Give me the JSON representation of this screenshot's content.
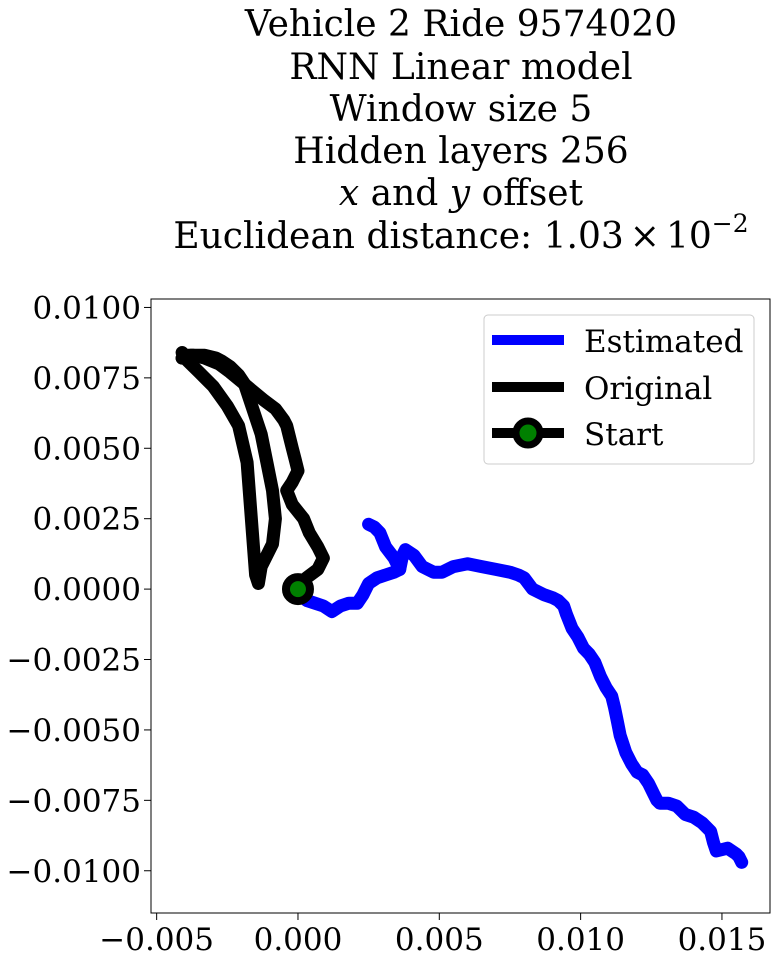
{
  "chart_data": {
    "type": "line",
    "title_lines": [
      "Vehicle 2 Ride 9574020",
      "RNN Linear model",
      "Window size 5",
      "Hidden layers 256"
    ],
    "offset_line": {
      "x_var": "x",
      "middle": " and ",
      "y_var": "y",
      "end": " offset"
    },
    "distance_line": {
      "prefix": "Euclidean distance: ",
      "mantissa": "1.03",
      "times": "×",
      "base": "10",
      "exponent": "−2"
    },
    "xlim": [
      -0.0052,
      0.0167
    ],
    "ylim": [
      -0.0115,
      0.0103
    ],
    "x_ticks": [
      {
        "value": -0.005,
        "label": "−0.005"
      },
      {
        "value": 0.0,
        "label": "0.000"
      },
      {
        "value": 0.005,
        "label": "0.005"
      },
      {
        "value": 0.01,
        "label": "0.010"
      },
      {
        "value": 0.015,
        "label": "0.015"
      }
    ],
    "y_ticks": [
      {
        "value": 0.01,
        "label": "0.0100"
      },
      {
        "value": 0.0075,
        "label": "0.0075"
      },
      {
        "value": 0.005,
        "label": "0.0050"
      },
      {
        "value": 0.0025,
        "label": "0.0025"
      },
      {
        "value": 0.0,
        "label": "0.0000"
      },
      {
        "value": -0.0025,
        "label": "−0.0025"
      },
      {
        "value": -0.005,
        "label": "−0.0050"
      },
      {
        "value": -0.0075,
        "label": "−0.0075"
      },
      {
        "value": -0.01,
        "label": "−0.0100"
      }
    ],
    "grid": false,
    "legend_position": "top-right",
    "legend": [
      {
        "label": "Estimated",
        "color": "#0000ff",
        "marker": false
      },
      {
        "label": "Original",
        "color": "#000000",
        "marker": false
      },
      {
        "label": "Start",
        "color": "#000000",
        "marker": true,
        "marker_face": "#008000"
      }
    ],
    "series": [
      {
        "name": "Estimated",
        "color": "#0000ff",
        "x": [
          0.0,
          0.0003,
          0.0006,
          0.0009,
          0.0012,
          0.0015,
          0.0018,
          0.0021,
          0.0023,
          0.0025,
          0.0028,
          0.0031,
          0.0034,
          0.0036,
          0.0037,
          0.0038,
          0.0041,
          0.0044,
          0.0046,
          0.0048,
          0.0051,
          0.0055,
          0.006,
          0.0065,
          0.007,
          0.0075,
          0.0078,
          0.008,
          0.0083,
          0.0087,
          0.009,
          0.0092,
          0.0094,
          0.0095,
          0.0097,
          0.0099,
          0.0101,
          0.0103,
          0.0105,
          0.0107,
          0.0109,
          0.0111,
          0.0112,
          0.0113,
          0.0114,
          0.0116,
          0.0118,
          0.012,
          0.0122,
          0.0124,
          0.0126,
          0.0127,
          0.0128,
          0.0131,
          0.0134,
          0.0137,
          0.014,
          0.0143,
          0.0146,
          0.0147,
          0.0148,
          0.0152,
          0.0155,
          0.0156,
          0.0157
        ],
        "y": [
          0.0,
          -0.0004,
          -0.0005,
          -0.0006,
          -0.0008,
          -0.0006,
          -0.0005,
          -0.0005,
          -0.0002,
          0.0002,
          0.0004,
          0.0005,
          0.0006,
          0.0007,
          0.0012,
          0.0014,
          0.0012,
          0.0008,
          0.0007,
          0.0006,
          0.0006,
          0.0008,
          0.0009,
          0.0008,
          0.0007,
          0.0006,
          0.0005,
          0.0004,
          0.0,
          -0.0002,
          -0.0003,
          -0.0004,
          -0.0006,
          -0.0009,
          -0.0014,
          -0.0017,
          -0.0021,
          -0.0023,
          -0.0026,
          -0.0031,
          -0.0035,
          -0.0038,
          -0.0042,
          -0.0047,
          -0.0052,
          -0.0058,
          -0.0062,
          -0.0065,
          -0.0066,
          -0.0069,
          -0.0073,
          -0.0075,
          -0.0076,
          -0.0076,
          -0.0077,
          -0.008,
          -0.0081,
          -0.0083,
          -0.0086,
          -0.009,
          -0.0093,
          -0.0092,
          -0.0094,
          -0.0095,
          -0.0097
        ]
      },
      {
        "name": "",
        "color": "#0000ff",
        "x": [
          0.0036,
          0.0034,
          0.0031,
          0.0029,
          0.0027,
          0.0025
        ],
        "y": [
          0.0007,
          0.0011,
          0.0015,
          0.002,
          0.0022,
          0.0023
        ]
      },
      {
        "name": "Original",
        "color": "#000000",
        "x": [
          0.0,
          0.0003,
          0.0007,
          0.0009,
          0.0007,
          0.0004,
          0.0002,
          -0.0002,
          -0.0004,
          -0.0002,
          0.0,
          -0.0001,
          -0.0002,
          -0.0003,
          -0.0004,
          -0.0005,
          -0.0008,
          -0.0012,
          -0.0018,
          -0.0024,
          -0.0028,
          -0.0033,
          -0.0037,
          -0.004,
          -0.0041
        ],
        "y": [
          0.0,
          0.0004,
          0.0007,
          0.0011,
          0.0015,
          0.002,
          0.0025,
          0.003,
          0.0035,
          0.0038,
          0.0042,
          0.0046,
          0.005,
          0.0054,
          0.0058,
          0.006,
          0.0064,
          0.0067,
          0.0072,
          0.0077,
          0.008,
          0.0082,
          0.0083,
          0.0083,
          0.0082
        ]
      },
      {
        "name": "",
        "color": "#000000",
        "x": [
          -0.0041,
          -0.0038,
          -0.0033,
          -0.0029,
          -0.0027,
          -0.0024,
          -0.0021,
          -0.0019,
          -0.0013,
          -0.0011,
          -0.0009,
          -0.0008,
          -0.0009,
          -0.0013,
          -0.0014,
          -0.0015,
          -0.0018,
          -0.0021,
          -0.0025,
          -0.003,
          -0.0035,
          -0.0039,
          -0.0041
        ],
        "y": [
          0.0082,
          0.0083,
          0.0083,
          0.0082,
          0.0081,
          0.0079,
          0.0076,
          0.0073,
          0.0055,
          0.0045,
          0.0035,
          0.0025,
          0.0016,
          0.0008,
          0.0002,
          0.0005,
          0.0045,
          0.0058,
          0.0065,
          0.0072,
          0.0077,
          0.0081,
          0.0084
        ]
      }
    ],
    "start_point": {
      "x": 0.0,
      "y": 0.0
    }
  }
}
